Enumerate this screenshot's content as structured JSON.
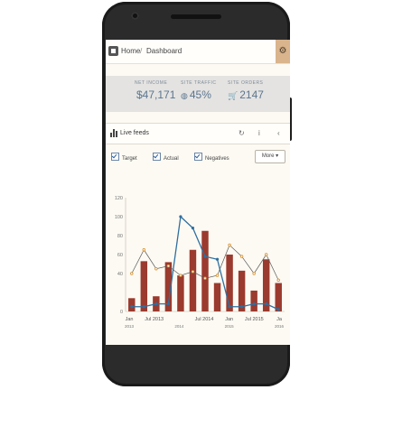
{
  "breadcrumb": {
    "home": "Home",
    "separator": "/",
    "current": "Dashboard"
  },
  "header": {
    "settings_icon": "gear-icon"
  },
  "stats": [
    {
      "label": "NET INCOME",
      "value": "$47,171",
      "icon": "dollar-icon",
      "glyph": ""
    },
    {
      "label": "SITE TRAFFIC",
      "value": "45%",
      "icon": "globe-icon",
      "glyph": "◍"
    },
    {
      "label": "SITE ORDERS",
      "value": "2147",
      "icon": "cart-icon",
      "glyph": "🛒"
    }
  ],
  "widget": {
    "title": "Live feeds",
    "icons": [
      "bar-chart-icon",
      "refresh-icon",
      "info-icon",
      "collapse-icon"
    ],
    "options": [
      {
        "label": "Target",
        "checked": true
      },
      {
        "label": "Actual",
        "checked": true
      },
      {
        "label": "Negatives",
        "checked": true
      }
    ],
    "more_label": "More ▾"
  },
  "colors": {
    "bar": "#9b3a2e",
    "actual_line": "#2f6f9f",
    "target_line": "#5a5a5a",
    "marker": "#d9922e"
  },
  "chart_data": {
    "type": "bar",
    "ylim": [
      0,
      120
    ],
    "y_ticks": [
      "120",
      "100",
      "80",
      "60",
      "40",
      "0"
    ],
    "x_ticks": [
      {
        "label": "Jan",
        "sub": "2013"
      },
      {
        "label": "Jul 2013",
        "sub": ""
      },
      {
        "label": "",
        "sub": "2014"
      },
      {
        "label": "Jul 2014",
        "sub": ""
      },
      {
        "label": "Jan",
        "sub": "2015"
      },
      {
        "label": "Jul 2015",
        "sub": ""
      },
      {
        "label": "Ja",
        "sub": "2016"
      }
    ],
    "series": [
      {
        "kind": "bar",
        "values": [
          14,
          53,
          16,
          52,
          38,
          65,
          85,
          30,
          60,
          43,
          22,
          55,
          30
        ]
      },
      {
        "kind": "line",
        "values": [
          5,
          5,
          8,
          8,
          100,
          88,
          58,
          55,
          5,
          5,
          8,
          8,
          2
        ]
      },
      {
        "kind": "line",
        "values": [
          40,
          65,
          45,
          48,
          38,
          42,
          35,
          38,
          70,
          58,
          40,
          60,
          33
        ]
      }
    ]
  }
}
